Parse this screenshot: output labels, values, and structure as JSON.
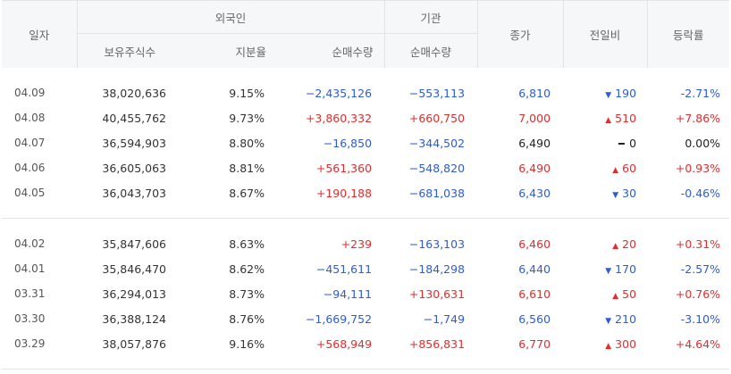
{
  "header": {
    "date": "일자",
    "foreign": "외국인",
    "institution": "기관",
    "close": "종가",
    "change": "전일비",
    "rate": "등락률",
    "holdings": "보유주식수",
    "ownership": "지분율",
    "foreign_net": "순매수량",
    "inst_net": "순매수량"
  },
  "rows": [
    {
      "date": "04.09",
      "holdings": "38,020,636",
      "ownership": "9.15%",
      "foreign_net": "−2,435,126",
      "inst_net": "−553,113",
      "close": "6,810",
      "change": "190",
      "rate": "-2.71%",
      "dir": "down",
      "fdir": "down",
      "idir": "down"
    },
    {
      "date": "04.08",
      "holdings": "40,455,762",
      "ownership": "9.73%",
      "foreign_net": "+3,860,332",
      "inst_net": "+660,750",
      "close": "7,000",
      "change": "510",
      "rate": "+7.86%",
      "dir": "up",
      "fdir": "up",
      "idir": "up"
    },
    {
      "date": "04.07",
      "holdings": "36,594,903",
      "ownership": "8.80%",
      "foreign_net": "−16,850",
      "inst_net": "−344,502",
      "close": "6,490",
      "change": "0",
      "rate": "0.00%",
      "dir": "flat",
      "fdir": "down",
      "idir": "down"
    },
    {
      "date": "04.06",
      "holdings": "36,605,063",
      "ownership": "8.81%",
      "foreign_net": "+561,360",
      "inst_net": "−548,820",
      "close": "6,490",
      "change": "60",
      "rate": "+0.93%",
      "dir": "up",
      "fdir": "up",
      "idir": "down"
    },
    {
      "date": "04.05",
      "holdings": "36,043,703",
      "ownership": "8.67%",
      "foreign_net": "+190,188",
      "inst_net": "−681,038",
      "close": "6,430",
      "change": "30",
      "rate": "-0.46%",
      "dir": "down",
      "fdir": "up",
      "idir": "down"
    },
    {
      "date": "04.02",
      "holdings": "35,847,606",
      "ownership": "8.63%",
      "foreign_net": "+239",
      "inst_net": "−163,103",
      "close": "6,460",
      "change": "20",
      "rate": "+0.31%",
      "dir": "up",
      "fdir": "up",
      "idir": "down"
    },
    {
      "date": "04.01",
      "holdings": "35,846,470",
      "ownership": "8.62%",
      "foreign_net": "−451,611",
      "inst_net": "−184,298",
      "close": "6,440",
      "change": "170",
      "rate": "-2.57%",
      "dir": "down",
      "fdir": "down",
      "idir": "down"
    },
    {
      "date": "03.31",
      "holdings": "36,294,013",
      "ownership": "8.73%",
      "foreign_net": "−94,111",
      "inst_net": "+130,631",
      "close": "6,610",
      "change": "50",
      "rate": "+0.76%",
      "dir": "up",
      "fdir": "down",
      "idir": "up"
    },
    {
      "date": "03.30",
      "holdings": "36,388,124",
      "ownership": "8.76%",
      "foreign_net": "−1,669,752",
      "inst_net": "−1,749",
      "close": "6,560",
      "change": "210",
      "rate": "-3.10%",
      "dir": "down",
      "fdir": "down",
      "idir": "down"
    },
    {
      "date": "03.29",
      "holdings": "38,057,876",
      "ownership": "9.16%",
      "foreign_net": "+568,949",
      "inst_net": "+856,831",
      "close": "6,770",
      "change": "300",
      "rate": "+4.64%",
      "dir": "up",
      "fdir": "up",
      "idir": "up"
    }
  ],
  "colors": {
    "up": "#e02d2d",
    "down": "#2e5bd7",
    "flat": "#222222"
  },
  "icons": {
    "up": "triangle-up-icon",
    "down": "triangle-down-icon",
    "flat": "dash-icon"
  }
}
